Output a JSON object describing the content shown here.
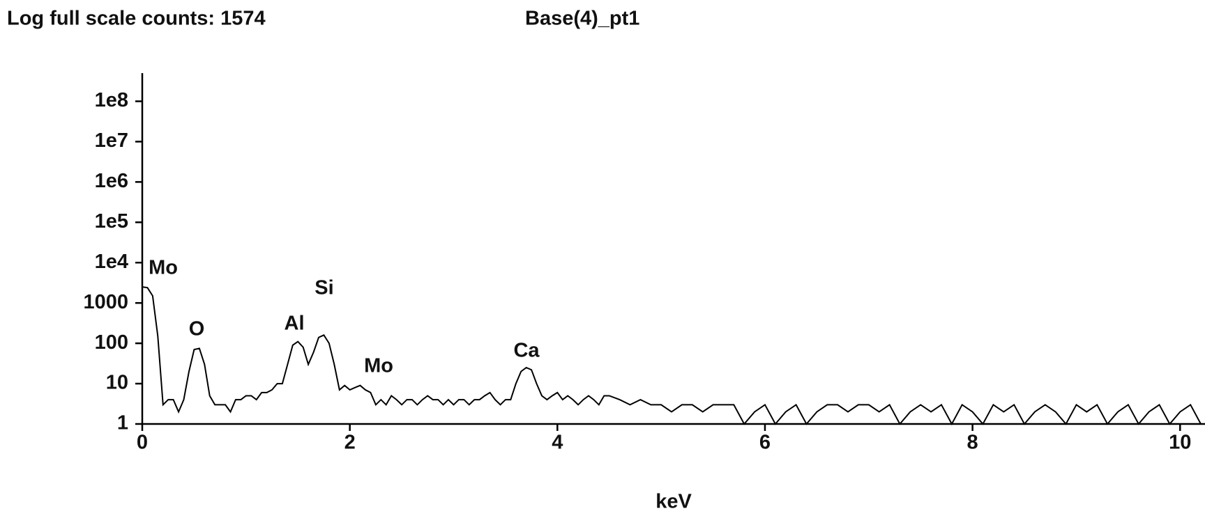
{
  "chart_data": {
    "type": "line",
    "title": "Log full scale counts: 1574",
    "subtitle": "Base(4)_pt1",
    "x_label": "keV",
    "log_y": true,
    "color": "#000000",
    "xlim": [
      0,
      10.24
    ],
    "xticks": [
      0,
      2,
      4,
      6,
      8,
      10
    ],
    "ylim": [
      1,
      500000000
    ],
    "yticks": [
      1,
      10,
      100,
      1000,
      {
        "value": 10000,
        "label": "1e4"
      },
      {
        "value": 100000,
        "label": "1e5"
      },
      {
        "value": 1000000,
        "label": "1e6"
      },
      {
        "value": 10000000,
        "label": "1e7"
      },
      {
        "value": 100000000,
        "label": "1e8"
      }
    ],
    "annotations": [
      "Mo",
      "O",
      "Al",
      "Si",
      "Mo",
      "Ca"
    ],
    "x": [
      0,
      0.05,
      0.1,
      0.15,
      0.2,
      0.25,
      0.3,
      0.35,
      0.4,
      0.45,
      0.5,
      0.55,
      0.6,
      0.65,
      0.7,
      0.75,
      0.8,
      0.85,
      0.9,
      0.95,
      1,
      1.05,
      1.1,
      1.15,
      1.2,
      1.25,
      1.3,
      1.35,
      1.4,
      1.45,
      1.5,
      1.55,
      1.6,
      1.65,
      1.7,
      1.75,
      1.8,
      1.85,
      1.9,
      1.95,
      2,
      2.05,
      2.1,
      2.15,
      2.2,
      2.25,
      2.3,
      2.35,
      2.4,
      2.45,
      2.5,
      2.55,
      2.6,
      2.65,
      2.7,
      2.75,
      2.8,
      2.85,
      2.9,
      2.95,
      3,
      3.05,
      3.1,
      3.15,
      3.2,
      3.25,
      3.3,
      3.35,
      3.4,
      3.45,
      3.5,
      3.55,
      3.6,
      3.65,
      3.7,
      3.75,
      3.8,
      3.85,
      3.9,
      3.95,
      4,
      4.05,
      4.1,
      4.15,
      4.2,
      4.25,
      4.3,
      4.35,
      4.4,
      4.45,
      4.5,
      4.6,
      4.7,
      4.8,
      4.9,
      5,
      5.1,
      5.2,
      5.3,
      5.4,
      5.5,
      5.6,
      5.7,
      5.8,
      5.9,
      6,
      6.1,
      6.2,
      6.3,
      6.4,
      6.5,
      6.6,
      6.7,
      6.8,
      6.9,
      7,
      7.1,
      7.2,
      7.3,
      7.4,
      7.5,
      7.6,
      7.7,
      7.8,
      7.9,
      8,
      8.1,
      8.2,
      8.3,
      8.4,
      8.5,
      8.6,
      8.7,
      8.8,
      8.9,
      9,
      9.1,
      9.2,
      9.3,
      9.4,
      9.5,
      9.6,
      9.7,
      9.8,
      9.9,
      10,
      10.1,
      10.2
    ],
    "values": [
      2500,
      2400,
      1500,
      150,
      3,
      4,
      4,
      2,
      4,
      20,
      70,
      75,
      30,
      5,
      3,
      3,
      3,
      2,
      4,
      4,
      5,
      5,
      4,
      6,
      6,
      7,
      10,
      10,
      30,
      90,
      110,
      80,
      30,
      60,
      140,
      160,
      100,
      30,
      7,
      9,
      7,
      8,
      9,
      7,
      6,
      3,
      4,
      3,
      5,
      4,
      3,
      4,
      4,
      3,
      4,
      5,
      4,
      4,
      3,
      4,
      3,
      4,
      4,
      3,
      4,
      4,
      5,
      6,
      4,
      3,
      4,
      4,
      10,
      20,
      25,
      22,
      10,
      5,
      4,
      5,
      6,
      4,
      5,
      4,
      3,
      4,
      5,
      4,
      3,
      5,
      5,
      4,
      3,
      4,
      3,
      3,
      2,
      3,
      3,
      2,
      3,
      3,
      3,
      1,
      2,
      3,
      1,
      2,
      3,
      1,
      2,
      3,
      3,
      2,
      3,
      3,
      2,
      3,
      1,
      2,
      3,
      2,
      3,
      1,
      3,
      2,
      1,
      3,
      2,
      3,
      1,
      2,
      3,
      2,
      1,
      3,
      2,
      3,
      1,
      2,
      3,
      1,
      2,
      3,
      1,
      2,
      3,
      1
    ]
  }
}
